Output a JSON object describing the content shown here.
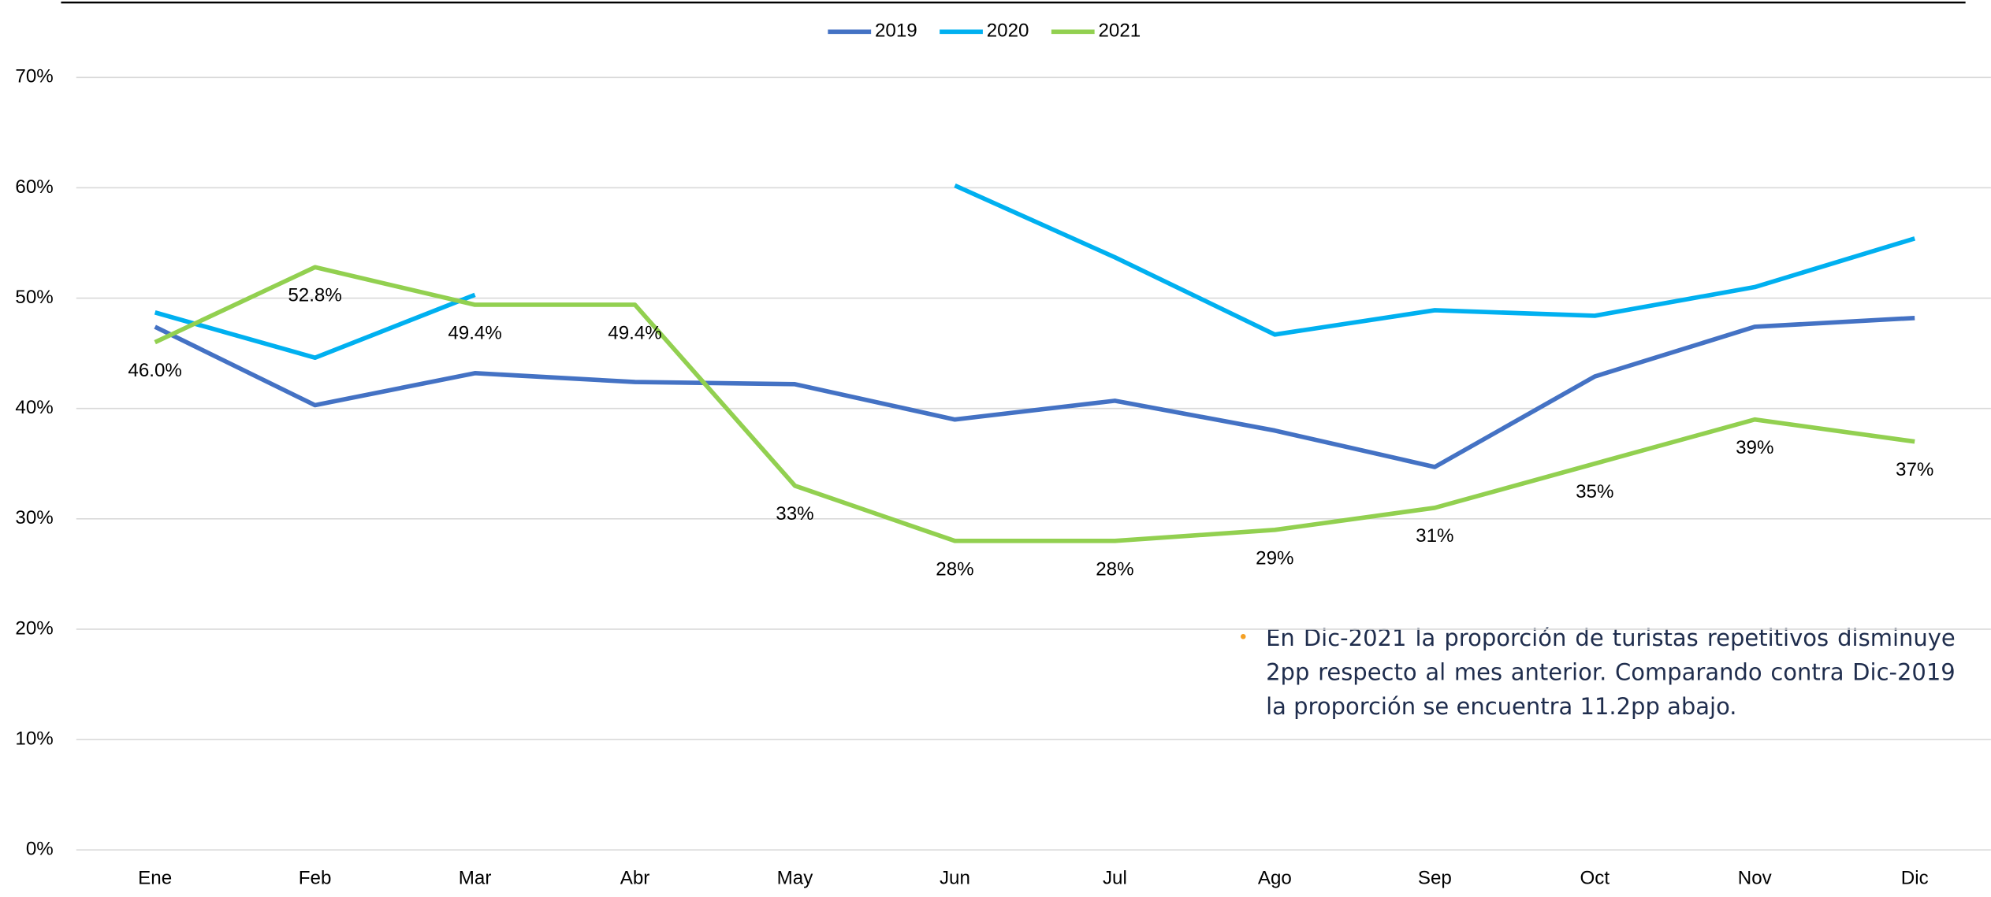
{
  "chart_data": {
    "type": "line",
    "categories": [
      "Ene",
      "Feb",
      "Mar",
      "Abr",
      "May",
      "Jun",
      "Jul",
      "Ago",
      "Sep",
      "Oct",
      "Nov",
      "Dic"
    ],
    "series": [
      {
        "name": "2019",
        "color": "#4472c4",
        "values": [
          47.4,
          40.3,
          43.2,
          42.4,
          42.2,
          39.0,
          40.7,
          38.0,
          34.7,
          42.9,
          47.4,
          48.2
        ]
      },
      {
        "name": "2020",
        "color": "#00b0f0",
        "values": [
          48.7,
          44.6,
          50.3,
          null,
          null,
          60.2,
          53.7,
          46.7,
          48.9,
          48.4,
          51.0,
          55.4
        ]
      },
      {
        "name": "2021",
        "color": "#92d050",
        "values": [
          46.0,
          52.8,
          49.4,
          49.4,
          33,
          28,
          28,
          29,
          31,
          35,
          39,
          37
        ],
        "value_labels": [
          "46.0%",
          "52.8%",
          "49.4%",
          "49.4%",
          "33%",
          "28%",
          "28%",
          "29%",
          "31%",
          "35%",
          "39%",
          "37%"
        ]
      }
    ],
    "ylim": [
      0,
      70
    ],
    "yticks": [
      {
        "value": 0,
        "label": "0%"
      },
      {
        "value": 10,
        "label": "10%"
      },
      {
        "value": 20,
        "label": "20%"
      },
      {
        "value": 30,
        "label": "30%"
      },
      {
        "value": 40,
        "label": "40%"
      },
      {
        "value": 50,
        "label": "50%"
      },
      {
        "value": 60,
        "label": "60%"
      },
      {
        "value": 70,
        "label": "70%"
      }
    ],
    "grid": true,
    "legend": "top",
    "annotation": "En Dic-2021 la proporción de turistas repetitivos disminuye 2pp respecto al mes anterior. Comparando contra Dic-2019 la proporción se encuentra 11.2pp abajo."
  }
}
